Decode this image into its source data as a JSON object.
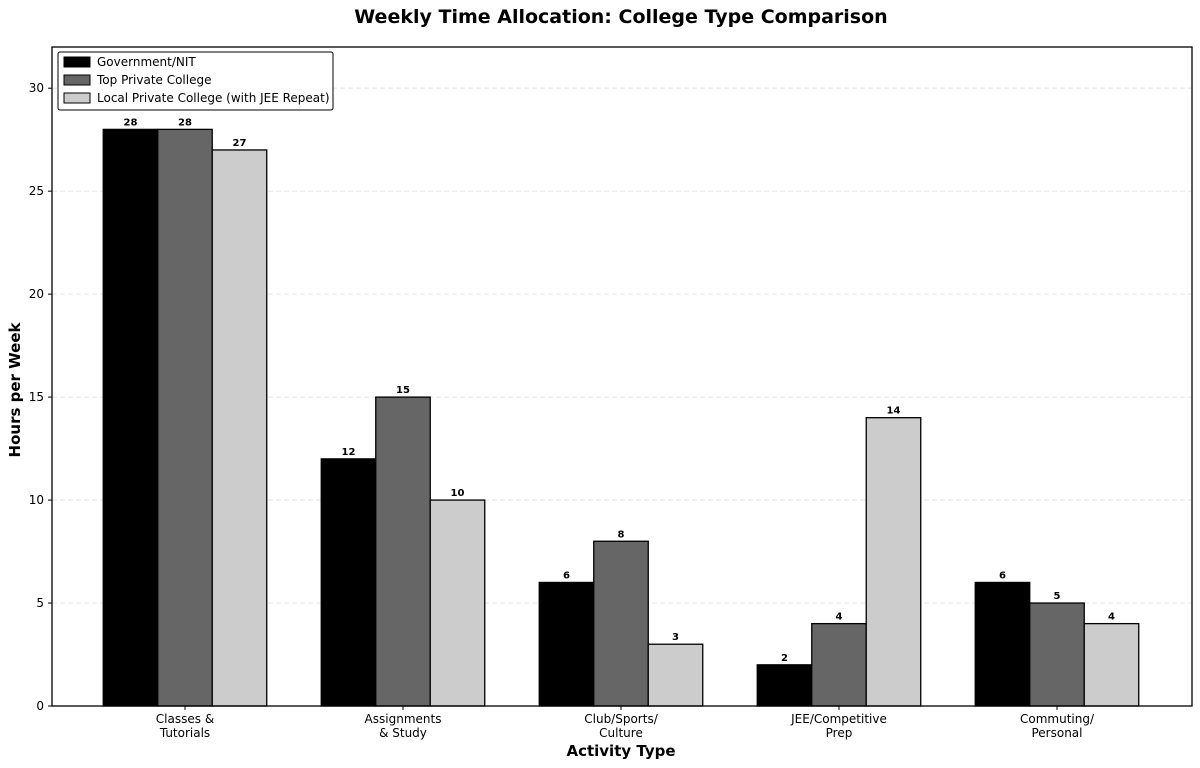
{
  "chart_data": {
    "type": "bar",
    "title": "Weekly Time Allocation: College Type Comparison",
    "x_label": "Activity Type",
    "y_label": "Hours per Week",
    "categories": [
      "Classes &\nTutorials",
      "Assignments\n& Study",
      "Club/Sports/\nCulture",
      "JEE/Competitive\nPrep",
      "Commuting/\nPersonal"
    ],
    "series": [
      {
        "name": "Government/NIT",
        "color": "#000000",
        "values": [
          28,
          12,
          6,
          2,
          6
        ]
      },
      {
        "name": "Top Private College",
        "color": "#666666",
        "values": [
          28,
          15,
          8,
          4,
          5
        ]
      },
      {
        "name": "Local Private College (with JEE Repeat)",
        "color": "#cccccc",
        "values": [
          27,
          10,
          3,
          14,
          4
        ]
      }
    ],
    "ylim": [
      0,
      32
    ],
    "yticks": [
      0,
      5,
      10,
      15,
      20,
      25,
      30
    ],
    "grid": true,
    "legend": "upper left"
  }
}
